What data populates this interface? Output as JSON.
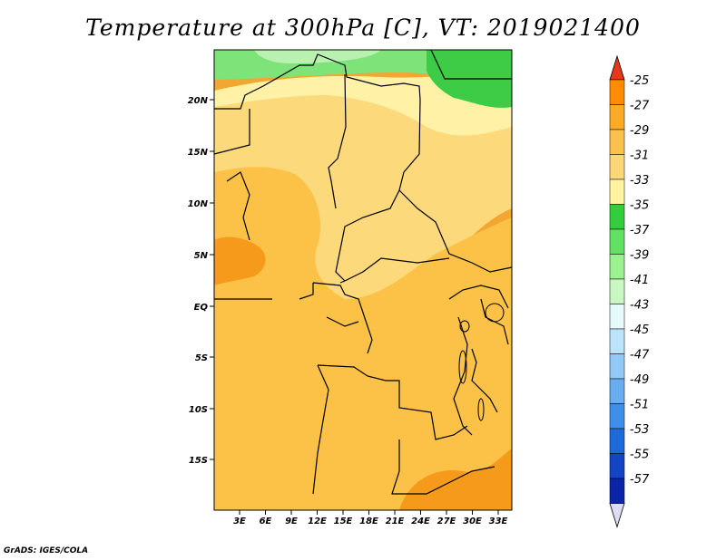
{
  "title": "Temperature at 300hPa [C], VT: 2019021400",
  "credit": "GrADS: IGES/COLA",
  "lat_labels": [
    "20N",
    "15N",
    "10N",
    "5N",
    "EQ",
    "5S",
    "10S",
    "15S"
  ],
  "lon_labels": [
    "3E",
    "6E",
    "9E",
    "12E",
    "15E",
    "18E",
    "21E",
    "24E",
    "27E",
    "30E",
    "33E"
  ],
  "colorbar": {
    "labels": [
      "-25",
      "-27",
      "-29",
      "-31",
      "-33",
      "-35",
      "-37",
      "-39",
      "-41",
      "-43",
      "-45",
      "-47",
      "-49",
      "-51",
      "-53",
      "-55",
      "-57"
    ],
    "colors": [
      "#ff5a00",
      "#ff8c00",
      "#fbab25",
      "#fcc04f",
      "#fcd77a",
      "#fff2a0",
      "#33cc3d",
      "#62e062",
      "#9bf08f",
      "#c9f7c1",
      "#e6f9fb",
      "#bde3fa",
      "#93c9f6",
      "#69acf0",
      "#3f8fe8",
      "#1e6ad9",
      "#1446c4",
      "#0a25a8",
      "#070b6e"
    ],
    "top_triangle_color": "#e8381c",
    "bottom_triangle_color": "#dcdcf5"
  },
  "colors": {
    "ocean": "#f3a632",
    "warm_band": "#f5ac34",
    "mid": "#fcc247",
    "pale": "#fcd97b",
    "cream": "#fff2a6",
    "green": "#3ecc46",
    "lightgreen": "#7ee47a",
    "mint": "#b8f1b0",
    "darkorange": "#f59a1a"
  }
}
